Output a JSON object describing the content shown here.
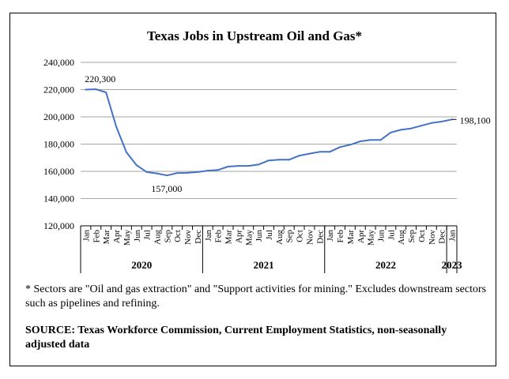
{
  "chart_data": {
    "type": "line",
    "title": "Texas Jobs in Upstream Oil and Gas*",
    "xlabel": "",
    "ylabel": "",
    "ylim": [
      120000,
      240000
    ],
    "yticks": [
      "120,000",
      "140,000",
      "160,000",
      "180,000",
      "200,000",
      "220,000",
      "240,000"
    ],
    "ytick_values": [
      120000,
      140000,
      160000,
      180000,
      200000,
      220000,
      240000
    ],
    "grid": true,
    "legend": "none",
    "line_color": "#4472C4",
    "month_labels": [
      "Jan",
      "Feb",
      "Mar",
      "Apr",
      "May",
      "Jun",
      "Jul",
      "Aug",
      "Sep",
      "Oct",
      "Nov",
      "Dec",
      "Jan",
      "Feb",
      "Mar",
      "Apr",
      "May",
      "Jun",
      "Jul",
      "Aug",
      "Sep",
      "Oct",
      "Nov",
      "Dec",
      "Jan",
      "Feb",
      "Mar",
      "Apr",
      "May",
      "Jun",
      "Jul",
      "Aug",
      "Sep",
      "Oct",
      "Nov",
      "Dec",
      "Jan"
    ],
    "year_labels": [
      {
        "label": "2020",
        "start": 0,
        "end": 11
      },
      {
        "label": "2021",
        "start": 12,
        "end": 23
      },
      {
        "label": "2022",
        "start": 24,
        "end": 35
      },
      {
        "label": "2023",
        "start": 36,
        "end": 36
      }
    ],
    "series": [
      {
        "values": [
          220000,
          220300,
          218000,
          193000,
          174000,
          164500,
          159500,
          158500,
          157000,
          158800,
          158900,
          159500,
          160500,
          161000,
          163500,
          164000,
          164000,
          165000,
          168000,
          168500,
          168500,
          171500,
          173000,
          174300,
          174300,
          177800,
          179500,
          182000,
          183000,
          183000,
          188500,
          190500,
          191500,
          193500,
          195500,
          196500,
          198100
        ]
      }
    ],
    "annotations": [
      {
        "index": 1,
        "text": "220,300"
      },
      {
        "index": 8,
        "text": "157,000"
      },
      {
        "index": 36,
        "text": "198,100"
      }
    ]
  },
  "footnote": "* Sectors are \"Oil and gas extraction\" and \"Support activities for mining.\"  Excludes downstream sectors such as pipelines and refining.",
  "source": "SOURCE: Texas Workforce Commission, Current Employment Statistics, non-seasonally adjusted data"
}
